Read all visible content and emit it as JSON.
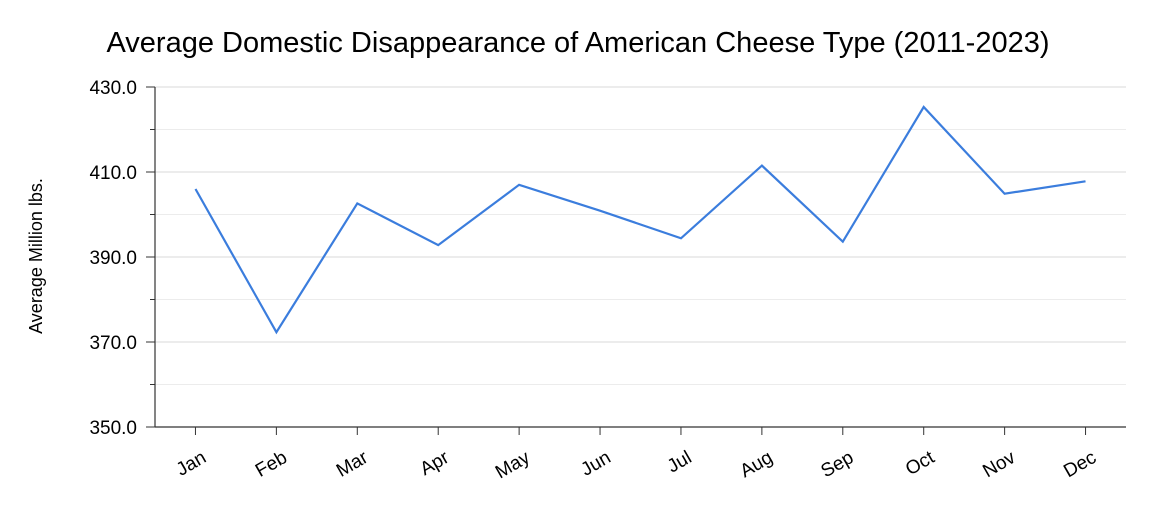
{
  "chart_data": {
    "type": "line",
    "title": "Average Domestic Disappearance of American Cheese Type (2011-2023)",
    "xlabel": "",
    "ylabel": "Average Million lbs.",
    "categories": [
      "Jan",
      "Feb",
      "Mar",
      "Apr",
      "May",
      "Jun",
      "Jul",
      "Aug",
      "Sep",
      "Oct",
      "Nov",
      "Dec"
    ],
    "series": [
      {
        "values": [
          406.0,
          372.3,
          402.6,
          392.8,
          407.0,
          400.9,
          394.4,
          411.5,
          393.6,
          425.3,
          404.9,
          407.8
        ]
      }
    ],
    "ylim": [
      350,
      430
    ],
    "yticks": [
      350,
      370,
      390,
      410,
      430
    ],
    "ytick_labels": [
      "350.0",
      "370.0",
      "390.0",
      "410.0",
      "430.0"
    ],
    "grid": true,
    "line_color": "#3b7ddd",
    "grid_color": "#d9d9d9",
    "minor_grid_color": "#ececec"
  }
}
